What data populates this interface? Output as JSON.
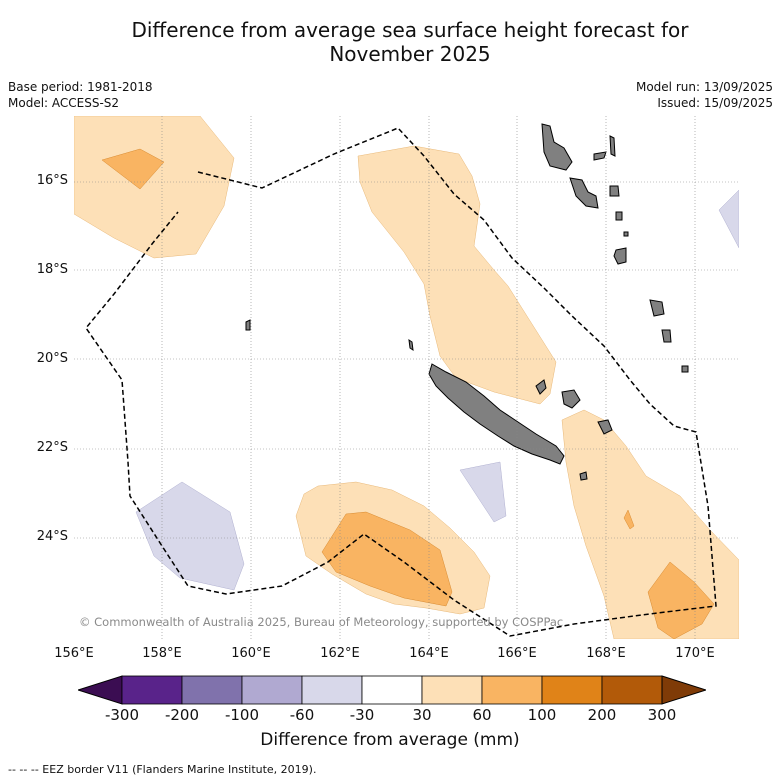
{
  "title_line1": "Difference from average sea surface height forecast for",
  "title_line2": "November 2025",
  "base_period": "Base period: 1981-2018",
  "model": "Model: ACCESS-S2",
  "model_run": "Model run: 13/09/2025",
  "issued": "Issued: 15/09/2025",
  "copyright": "© Commonwealth of Australia 2025, Bureau of Meteorology, supported by COSPPac",
  "lat_ticks": [
    "16°S",
    "18°S",
    "20°S",
    "22°S",
    "24°S"
  ],
  "lon_ticks": [
    "156°E",
    "158°E",
    "160°E",
    "162°E",
    "164°E",
    "166°E",
    "168°E",
    "170°E"
  ],
  "colorbar": {
    "label": "Difference from average (mm)",
    "ticks": [
      "-300",
      "-200",
      "-100",
      "-60",
      "-30",
      "30",
      "60",
      "100",
      "200",
      "300"
    ],
    "colors": [
      "#3b0d52",
      "#59238a",
      "#8072ac",
      "#b0a9d1",
      "#d8d8ea",
      "#ffffff",
      "#fde0b7",
      "#f9b462",
      "#e08318",
      "#b25a09",
      "#7f3b07"
    ]
  },
  "footnote": "-- -- -- EEZ border V11 (Flanders Marine Institute, 2019).",
  "legend_colors": {
    "anomaly_30_60": "#fde0b7",
    "anomaly_60_100": "#f9b462",
    "anomaly_neg30_neg60": "#d8d8ea",
    "land": "#808080"
  }
}
